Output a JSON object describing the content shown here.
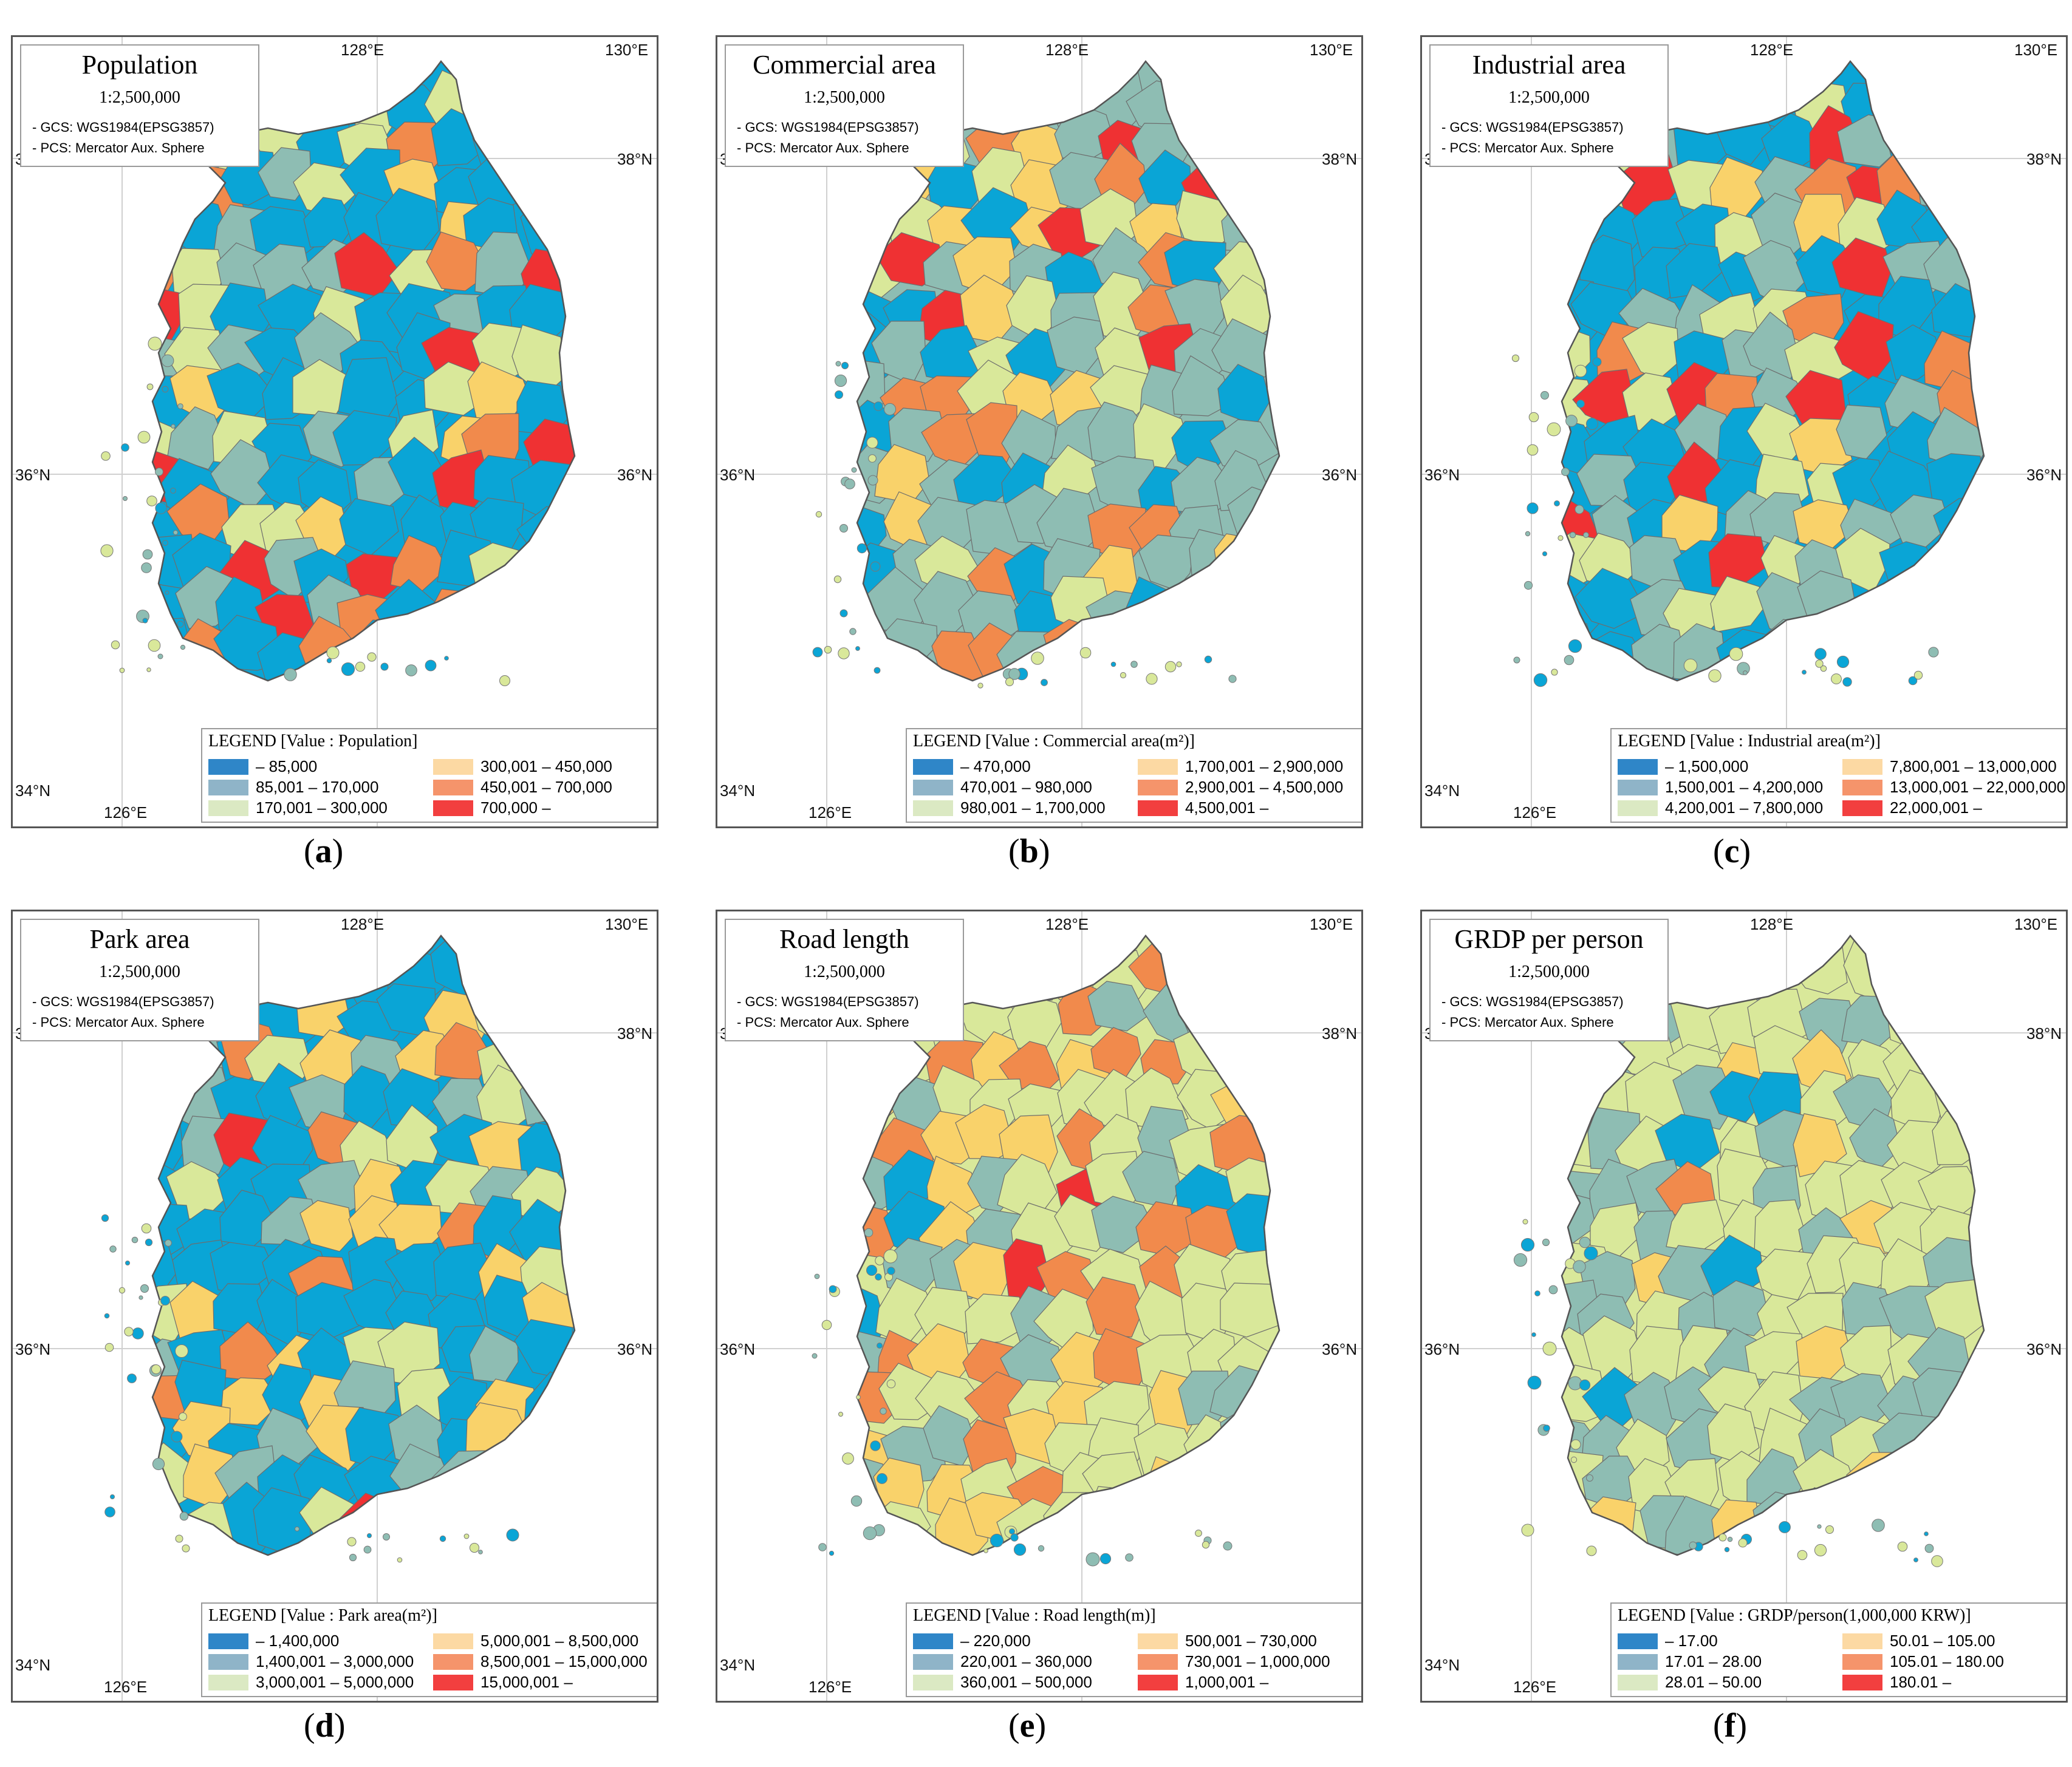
{
  "common": {
    "scale": "1:2,500,000",
    "gcs": "- GCS: WGS1984(EPSG3857)",
    "pcs": "- PCS: Mercator Aux. Sphere",
    "lon_labels": [
      "128°E",
      "130°E",
      "126°E"
    ],
    "lat_labels": [
      "38°N",
      "36°N",
      "34°N"
    ]
  },
  "colors": {
    "class1": "#2f86c8",
    "class1_map": "#0aa5d6",
    "class2": "#8fb4c8",
    "class2_map": "#8ebdb3",
    "class3": "#dbe9c3",
    "class3_map": "#d9e89a",
    "class4": "#fcd9a3",
    "class4_map": "#f9d26a",
    "class5": "#f5946b",
    "class5_map": "#f18a4c",
    "class6": "#f23f3f",
    "class6_map": "#ef3133"
  },
  "panels": [
    {
      "id": "a",
      "title": "Population",
      "caption_letter": "a",
      "legend_title": "LEGEND [Value : Population]",
      "classes": [
        "– 85,000",
        "85,001 – 170,000",
        "170,001 – 300,000",
        "300,001 – 450,000",
        "450,001 – 700,000",
        "700,000 –"
      ],
      "dominant": "class1"
    },
    {
      "id": "b",
      "title": "Commercial area",
      "caption_letter": "b",
      "legend_title": "LEGEND [Value : Commercial area(m²)]",
      "classes": [
        "– 470,000",
        "470,001 – 980,000",
        "980,001 – 1,700,000",
        "1,700,001 – 2,900,000",
        "2,900,001 – 4,500,000",
        "4,500,001 –"
      ],
      "dominant": "class2"
    },
    {
      "id": "c",
      "title": "Industrial area",
      "caption_letter": "c",
      "legend_title": "LEGEND [Value : Industrial area(m²)]",
      "classes": [
        "– 1,500,000",
        "1,500,001 – 4,200,000",
        "4,200,001 – 7,800,000",
        "7,800,001 – 13,000,000",
        "13,000,001 – 22,000,000",
        "22,000,001 –"
      ],
      "dominant": "class1"
    },
    {
      "id": "d",
      "title": "Park area",
      "caption_letter": "d",
      "legend_title": "LEGEND [Value : Park area(m²)]",
      "classes": [
        "– 1,400,000",
        "1,400,001 – 3,000,000",
        "3,000,001 – 5,000,000",
        "5,000,001 – 8,500,000",
        "8,500,001 – 15,000,000",
        "15,000,001 –"
      ],
      "dominant": "class1"
    },
    {
      "id": "e",
      "title": "Road length",
      "caption_letter": "e",
      "legend_title": "LEGEND [Value : Road length(m)]",
      "classes": [
        "– 220,000",
        "220,001 – 360,000",
        "360,001 – 500,000",
        "500,001 – 730,000",
        "730,001 – 1,000,000",
        "1,000,001 –"
      ],
      "dominant": "class3"
    },
    {
      "id": "f",
      "title": "GRDP per person",
      "caption_letter": "f",
      "legend_title": "LEGEND [Value : GRDP/person(1,000,000 KRW)]",
      "classes": [
        "– 17.00",
        "17.01 – 28.00",
        "28.01 – 50.00",
        "50.01 – 105.00",
        "105.01 – 180.00",
        "180.01 –"
      ],
      "dominant": "class3"
    }
  ]
}
